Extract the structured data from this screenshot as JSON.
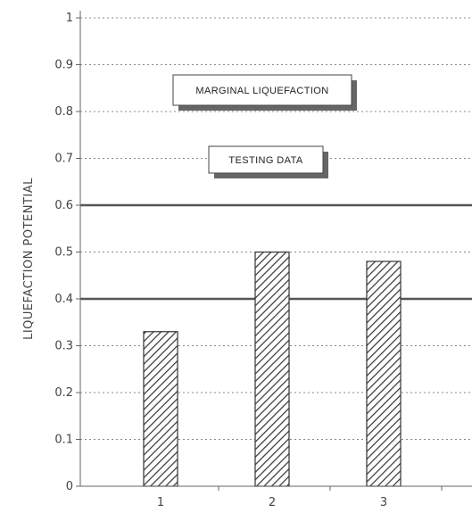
{
  "chart_data": {
    "type": "bar",
    "title": "",
    "ylabel": "LIQUEFACTION POTENTIAL",
    "xlabel": "",
    "categories": [
      "1",
      "2",
      "3"
    ],
    "values": [
      0.33,
      0.5,
      0.48
    ],
    "ylim": [
      0,
      1
    ],
    "yticks": [
      "0",
      "0.1",
      "0.2",
      "0.3",
      "0.4",
      "0.5",
      "0.6",
      "0.7",
      "0.8",
      "0.9",
      "1"
    ],
    "grid": "horizontal dotted",
    "bar_fill": "diagonal hatch",
    "reference_lines": [
      0.4,
      0.6
    ],
    "annotations": [
      {
        "text": "MARGINAL LIQUEFACTION"
      },
      {
        "text": "TESTING DATA"
      }
    ],
    "colors": {
      "bars": "#333333",
      "lines": "#555555",
      "text": "#444444"
    }
  }
}
